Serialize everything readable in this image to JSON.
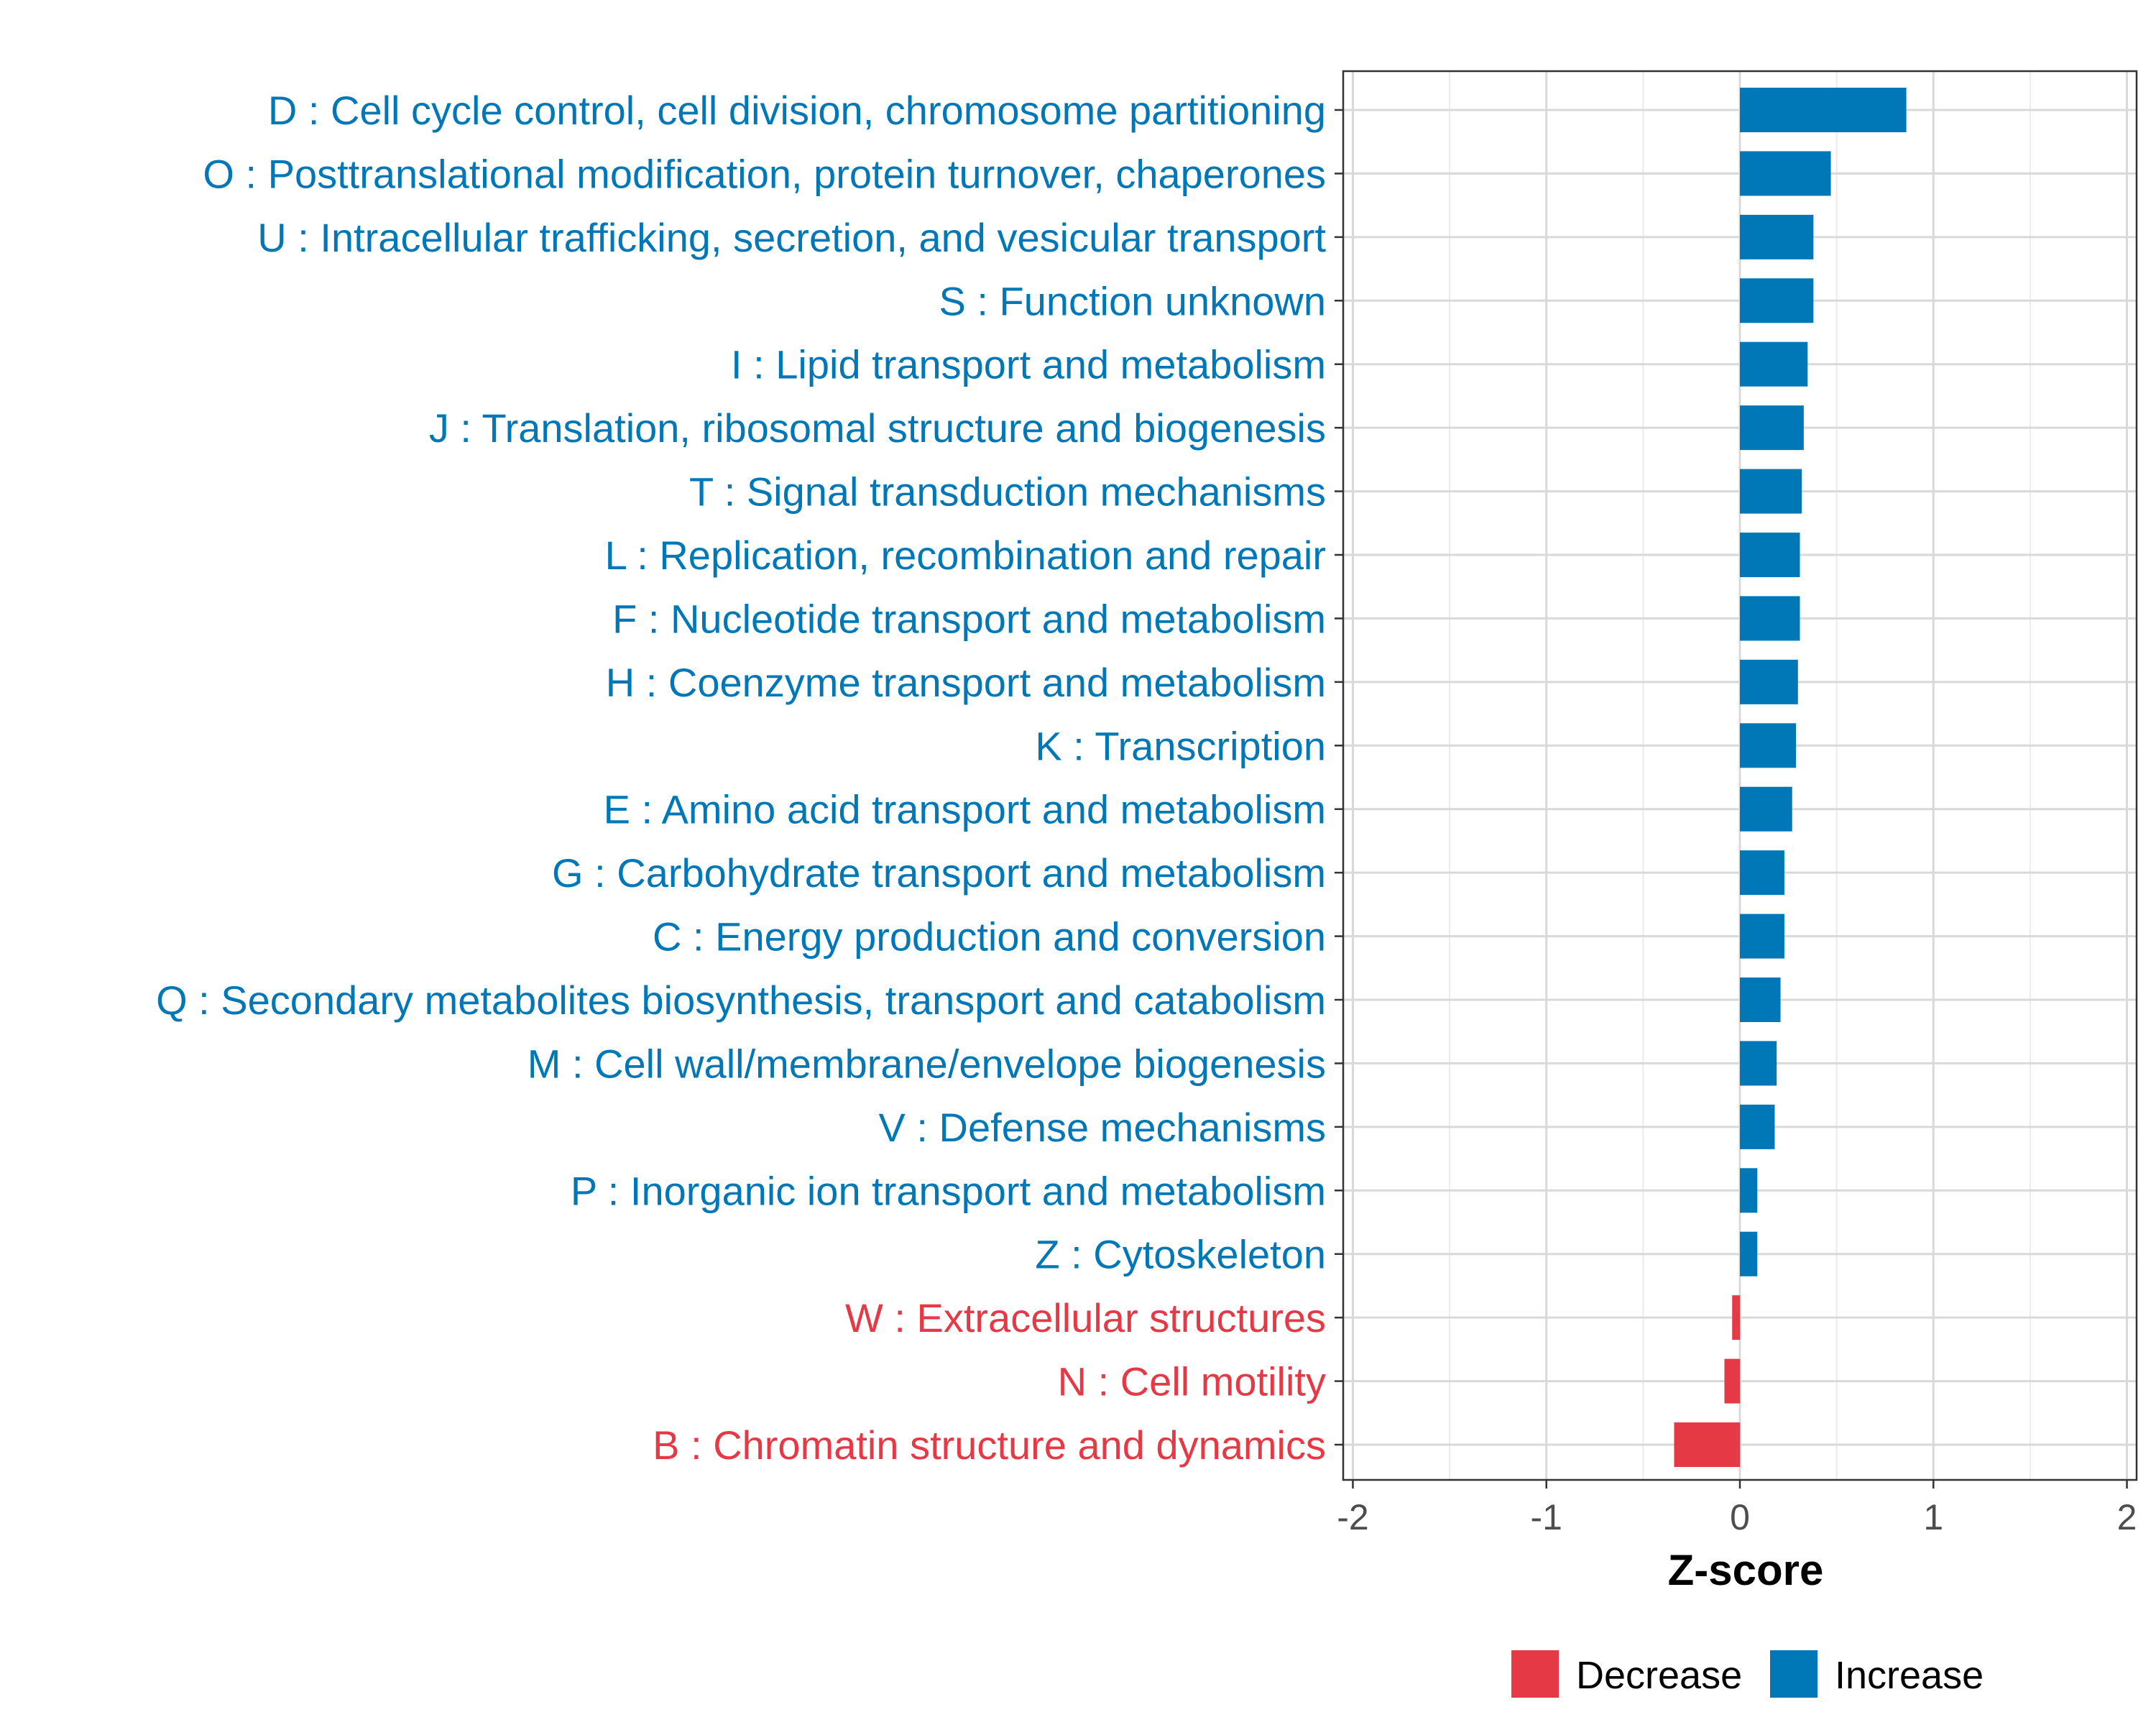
{
  "chart_data": {
    "type": "bar",
    "orientation": "horizontal",
    "title": "",
    "xlabel": "Z-score",
    "ylabel": "",
    "xlim": [
      -2.05,
      2.05
    ],
    "x_ticks": [
      -2,
      -1,
      0,
      1,
      2
    ],
    "x_tick_labels": [
      "-2",
      "-1",
      "0",
      "1",
      "2"
    ],
    "grid": true,
    "legend": {
      "position": "bottom",
      "entries": [
        {
          "label": "Decrease",
          "color": "#e63946"
        },
        {
          "label": "Increase",
          "color": "#0077b6"
        }
      ]
    },
    "categories": [
      "D : Cell cycle control, cell division, chromosome partitioning",
      "O : Posttranslational modification, protein turnover, chaperones",
      "U : Intracellular trafficking, secretion, and vesicular transport",
      "S : Function unknown",
      "I : Lipid transport and metabolism",
      "J : Translation, ribosomal structure and biogenesis",
      "T : Signal transduction mechanisms",
      "L : Replication, recombination and repair",
      "F : Nucleotide transport and metabolism",
      "H : Coenzyme transport and metabolism",
      "K : Transcription",
      "E : Amino acid transport and metabolism",
      "G : Carbohydrate transport and metabolism",
      "C : Energy production and conversion",
      "Q : Secondary metabolites biosynthesis, transport and catabolism",
      "M : Cell wall/membrane/envelope biogenesis",
      "V : Defense mechanisms",
      "P : Inorganic ion transport and metabolism",
      "Z : Cytoskeleton",
      "W : Extracellular structures",
      "N : Cell motility",
      "B : Chromatin structure and dynamics"
    ],
    "values": [
      0.86,
      0.47,
      0.38,
      0.38,
      0.35,
      0.33,
      0.32,
      0.31,
      0.31,
      0.3,
      0.29,
      0.27,
      0.23,
      0.23,
      0.21,
      0.19,
      0.18,
      0.09,
      0.09,
      -0.04,
      -0.08,
      -0.34
    ],
    "direction": [
      "Increase",
      "Increase",
      "Increase",
      "Increase",
      "Increase",
      "Increase",
      "Increase",
      "Increase",
      "Increase",
      "Increase",
      "Increase",
      "Increase",
      "Increase",
      "Increase",
      "Increase",
      "Increase",
      "Increase",
      "Increase",
      "Increase",
      "Decrease",
      "Decrease",
      "Decrease"
    ]
  }
}
